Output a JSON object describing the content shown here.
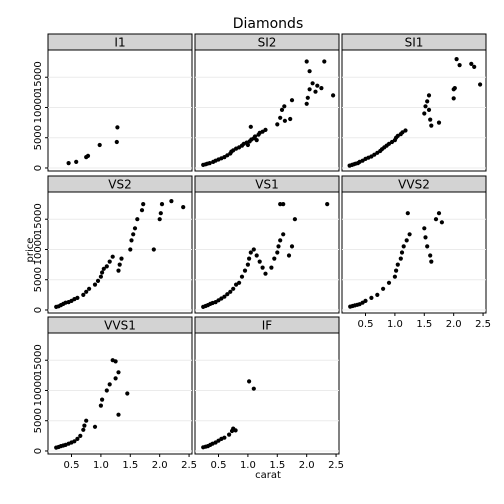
{
  "chart_data": {
    "type": "scatter",
    "title": "Diamonds",
    "xlabel": "carat",
    "ylabel": "price",
    "xlim": [
      0.1,
      2.55
    ],
    "ylim": [
      -500,
      19500
    ],
    "x_ticks": [
      0.5,
      1.0,
      1.5,
      2.0,
      2.5
    ],
    "x_tick_labels": [
      "0.5",
      "1.0",
      "1.5",
      "2.0",
      "2.5"
    ],
    "y_ticks": [
      0,
      5000,
      10000,
      15000
    ],
    "y_tick_labels": [
      "0",
      "5000",
      "10000",
      "15000"
    ],
    "grid": true,
    "panels": [
      {
        "name": "I1",
        "points": [
          [
            0.45,
            800
          ],
          [
            0.58,
            1000
          ],
          [
            0.75,
            1800
          ],
          [
            0.78,
            2000
          ],
          [
            0.98,
            3800
          ],
          [
            1.27,
            4300
          ],
          [
            1.28,
            6700
          ]
        ]
      },
      {
        "name": "SI2",
        "points": [
          [
            0.24,
            500
          ],
          [
            0.28,
            600
          ],
          [
            0.31,
            700
          ],
          [
            0.35,
            800
          ],
          [
            0.41,
            1000
          ],
          [
            0.45,
            1200
          ],
          [
            0.5,
            1400
          ],
          [
            0.55,
            1600
          ],
          [
            0.6,
            1800
          ],
          [
            0.65,
            2100
          ],
          [
            0.7,
            2400
          ],
          [
            0.72,
            2700
          ],
          [
            0.75,
            2900
          ],
          [
            0.8,
            3200
          ],
          [
            0.85,
            3400
          ],
          [
            0.9,
            3700
          ],
          [
            0.93,
            4000
          ],
          [
            0.98,
            4200
          ],
          [
            1.0,
            3800
          ],
          [
            1.03,
            4400
          ],
          [
            1.06,
            4700
          ],
          [
            1.1,
            4900
          ],
          [
            1.12,
            5200
          ],
          [
            1.15,
            4600
          ],
          [
            1.18,
            5500
          ],
          [
            1.2,
            5800
          ],
          [
            1.25,
            6000
          ],
          [
            1.3,
            6300
          ],
          [
            1.05,
            6800
          ],
          [
            1.5,
            7200
          ],
          [
            1.55,
            8300
          ],
          [
            1.58,
            9600
          ],
          [
            1.62,
            10200
          ],
          [
            1.63,
            7800
          ],
          [
            1.72,
            8100
          ],
          [
            1.75,
            11200
          ],
          [
            2.0,
            10600
          ],
          [
            2.02,
            11600
          ],
          [
            2.05,
            13000
          ],
          [
            2.1,
            14000
          ],
          [
            2.15,
            12600
          ],
          [
            2.18,
            13600
          ],
          [
            2.25,
            13200
          ],
          [
            2.05,
            16000
          ],
          [
            2.0,
            17600
          ],
          [
            2.3,
            17600
          ],
          [
            2.45,
            12000
          ]
        ]
      },
      {
        "name": "SI1",
        "points": [
          [
            0.23,
            400
          ],
          [
            0.27,
            500
          ],
          [
            0.3,
            600
          ],
          [
            0.33,
            700
          ],
          [
            0.37,
            800
          ],
          [
            0.4,
            1000
          ],
          [
            0.45,
            1200
          ],
          [
            0.5,
            1500
          ],
          [
            0.55,
            1700
          ],
          [
            0.6,
            1900
          ],
          [
            0.65,
            2200
          ],
          [
            0.7,
            2500
          ],
          [
            0.75,
            2800
          ],
          [
            0.78,
            3100
          ],
          [
            0.82,
            3400
          ],
          [
            0.86,
            3700
          ],
          [
            0.9,
            4000
          ],
          [
            0.95,
            4300
          ],
          [
            1.0,
            4600
          ],
          [
            1.02,
            5000
          ],
          [
            1.05,
            5300
          ],
          [
            1.1,
            5600
          ],
          [
            1.13,
            5900
          ],
          [
            1.18,
            6200
          ],
          [
            1.5,
            9000
          ],
          [
            1.52,
            10200
          ],
          [
            1.55,
            11000
          ],
          [
            1.58,
            12000
          ],
          [
            1.6,
            8000
          ],
          [
            1.62,
            7000
          ],
          [
            1.75,
            7500
          ],
          [
            1.58,
            9600
          ],
          [
            2.0,
            11500
          ],
          [
            2.02,
            13200
          ],
          [
            2.05,
            18000
          ],
          [
            2.1,
            17000
          ],
          [
            2.3,
            17200
          ],
          [
            2.35,
            16700
          ],
          [
            2.45,
            13800
          ],
          [
            2.0,
            13000
          ]
        ]
      },
      {
        "name": "VS2",
        "points": [
          [
            0.24,
            500
          ],
          [
            0.28,
            600
          ],
          [
            0.32,
            800
          ],
          [
            0.36,
            1000
          ],
          [
            0.4,
            1200
          ],
          [
            0.45,
            1300
          ],
          [
            0.5,
            1500
          ],
          [
            0.55,
            1800
          ],
          [
            0.6,
            2000
          ],
          [
            0.7,
            2500
          ],
          [
            0.75,
            3000
          ],
          [
            0.8,
            3500
          ],
          [
            0.9,
            4200
          ],
          [
            0.95,
            4800
          ],
          [
            1.0,
            5500
          ],
          [
            1.02,
            6200
          ],
          [
            1.05,
            6800
          ],
          [
            1.1,
            7200
          ],
          [
            1.15,
            8000
          ],
          [
            1.2,
            8800
          ],
          [
            1.3,
            6500
          ],
          [
            1.32,
            7500
          ],
          [
            1.35,
            8500
          ],
          [
            1.5,
            10000
          ],
          [
            1.52,
            11500
          ],
          [
            1.55,
            12500
          ],
          [
            1.58,
            13500
          ],
          [
            1.62,
            15000
          ],
          [
            1.7,
            16500
          ],
          [
            1.72,
            17500
          ],
          [
            1.9,
            10000
          ],
          [
            2.0,
            15000
          ],
          [
            2.02,
            16000
          ],
          [
            2.04,
            17500
          ],
          [
            2.2,
            18000
          ],
          [
            2.4,
            17000
          ]
        ]
      },
      {
        "name": "VS1",
        "points": [
          [
            0.24,
            500
          ],
          [
            0.28,
            650
          ],
          [
            0.32,
            800
          ],
          [
            0.36,
            1000
          ],
          [
            0.4,
            1150
          ],
          [
            0.45,
            1300
          ],
          [
            0.5,
            1600
          ],
          [
            0.55,
            1900
          ],
          [
            0.6,
            2200
          ],
          [
            0.65,
            2600
          ],
          [
            0.7,
            3000
          ],
          [
            0.75,
            3500
          ],
          [
            0.8,
            4200
          ],
          [
            0.85,
            4500
          ],
          [
            0.9,
            5500
          ],
          [
            0.95,
            6500
          ],
          [
            1.0,
            7500
          ],
          [
            1.02,
            8500
          ],
          [
            1.05,
            9500
          ],
          [
            1.1,
            10000
          ],
          [
            1.15,
            9000
          ],
          [
            1.2,
            8000
          ],
          [
            1.25,
            7000
          ],
          [
            1.3,
            6000
          ],
          [
            1.4,
            7000
          ],
          [
            1.45,
            8500
          ],
          [
            1.5,
            9500
          ],
          [
            1.52,
            10500
          ],
          [
            1.55,
            11500
          ],
          [
            1.6,
            12500
          ],
          [
            1.7,
            9000
          ],
          [
            1.75,
            10500
          ],
          [
            1.8,
            15000
          ],
          [
            1.55,
            17500
          ],
          [
            1.6,
            17500
          ],
          [
            2.35,
            17500
          ]
        ]
      },
      {
        "name": "VVS2",
        "points": [
          [
            0.24,
            550
          ],
          [
            0.28,
            650
          ],
          [
            0.32,
            750
          ],
          [
            0.36,
            850
          ],
          [
            0.4,
            950
          ],
          [
            0.45,
            1200
          ],
          [
            0.5,
            1500
          ],
          [
            0.6,
            2000
          ],
          [
            0.7,
            2500
          ],
          [
            0.8,
            3500
          ],
          [
            0.9,
            4500
          ],
          [
            1.0,
            5500
          ],
          [
            1.02,
            6500
          ],
          [
            1.05,
            7500
          ],
          [
            1.1,
            8500
          ],
          [
            1.12,
            9500
          ],
          [
            1.15,
            10500
          ],
          [
            1.2,
            11500
          ],
          [
            1.25,
            12500
          ],
          [
            1.5,
            13500
          ],
          [
            1.52,
            12000
          ],
          [
            1.55,
            10500
          ],
          [
            1.6,
            9000
          ],
          [
            1.62,
            8000
          ],
          [
            1.7,
            15000
          ],
          [
            1.75,
            16000
          ],
          [
            1.8,
            14500
          ],
          [
            1.22,
            16000
          ]
        ]
      },
      {
        "name": "VVS1",
        "points": [
          [
            0.24,
            550
          ],
          [
            0.28,
            650
          ],
          [
            0.32,
            800
          ],
          [
            0.36,
            900
          ],
          [
            0.4,
            1000
          ],
          [
            0.45,
            1200
          ],
          [
            0.5,
            1400
          ],
          [
            0.55,
            1600
          ],
          [
            0.6,
            2000
          ],
          [
            0.65,
            2500
          ],
          [
            0.7,
            3500
          ],
          [
            0.72,
            4200
          ],
          [
            0.75,
            5000
          ],
          [
            0.9,
            4000
          ],
          [
            1.0,
            7500
          ],
          [
            1.02,
            8500
          ],
          [
            1.1,
            10000
          ],
          [
            1.15,
            11000
          ],
          [
            1.25,
            12000
          ],
          [
            1.3,
            13000
          ],
          [
            1.2,
            15000
          ],
          [
            1.25,
            14800
          ],
          [
            1.45,
            9500
          ],
          [
            1.3,
            6000
          ]
        ]
      },
      {
        "name": "IF",
        "points": [
          [
            0.24,
            600
          ],
          [
            0.28,
            700
          ],
          [
            0.32,
            800
          ],
          [
            0.36,
            1000
          ],
          [
            0.4,
            1200
          ],
          [
            0.45,
            1400
          ],
          [
            0.5,
            1700
          ],
          [
            0.55,
            2000
          ],
          [
            0.6,
            2200
          ],
          [
            0.68,
            2700
          ],
          [
            0.73,
            3300
          ],
          [
            0.75,
            3700
          ],
          [
            0.79,
            3400
          ],
          [
            1.02,
            11500
          ],
          [
            1.1,
            10300
          ]
        ]
      }
    ]
  }
}
